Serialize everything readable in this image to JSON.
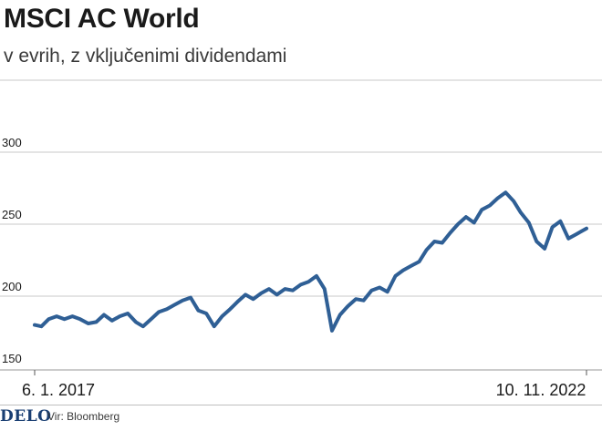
{
  "title": "MSCI AC World",
  "subtitle": "v evrih, z vključenimi dividendami",
  "brand": "DELO",
  "source": "Vir: Bloomberg",
  "colors": {
    "line": "#2f5f95",
    "grid": "#c8c8c8",
    "brand": "#1a3f73"
  },
  "chart_data": {
    "type": "line",
    "title": "MSCI AC World",
    "subtitle": "v evrih, z vključenimi dividendami",
    "x_start_label": "6. 1. 2017",
    "x_end_label": "10. 11. 2022",
    "x_tick_labels": [
      "6. 1. 2017",
      "10. 11. 2022"
    ],
    "y_ticks": [
      150,
      200,
      250,
      300
    ],
    "ylim": [
      140,
      350
    ],
    "grid": "horizontal",
    "series": [
      {
        "name": "",
        "values": [
          [
            "2017-01-06",
            180
          ],
          [
            "2017-02-01",
            179
          ],
          [
            "2017-03-01",
            184
          ],
          [
            "2017-04-01",
            186
          ],
          [
            "2017-05-01",
            184
          ],
          [
            "2017-06-01",
            186
          ],
          [
            "2017-07-01",
            184
          ],
          [
            "2017-08-01",
            181
          ],
          [
            "2017-09-01",
            182
          ],
          [
            "2017-10-01",
            187
          ],
          [
            "2017-11-01",
            183
          ],
          [
            "2017-12-01",
            186
          ],
          [
            "2018-01-01",
            188
          ],
          [
            "2018-02-01",
            182
          ],
          [
            "2018-03-01",
            179
          ],
          [
            "2018-04-01",
            184
          ],
          [
            "2018-05-01",
            189
          ],
          [
            "2018-06-01",
            191
          ],
          [
            "2018-07-01",
            194
          ],
          [
            "2018-08-01",
            197
          ],
          [
            "2018-09-01",
            199
          ],
          [
            "2018-10-01",
            190
          ],
          [
            "2018-11-01",
            188
          ],
          [
            "2018-12-01",
            179
          ],
          [
            "2019-01-01",
            186
          ],
          [
            "2019-02-01",
            191
          ],
          [
            "2019-03-01",
            196
          ],
          [
            "2019-04-01",
            201
          ],
          [
            "2019-05-01",
            198
          ],
          [
            "2019-06-01",
            202
          ],
          [
            "2019-07-01",
            205
          ],
          [
            "2019-08-01",
            201
          ],
          [
            "2019-09-01",
            205
          ],
          [
            "2019-10-01",
            204
          ],
          [
            "2019-11-01",
            208
          ],
          [
            "2019-12-01",
            210
          ],
          [
            "2020-01-01",
            214
          ],
          [
            "2020-02-01",
            205
          ],
          [
            "2020-03-01",
            176
          ],
          [
            "2020-04-01",
            187
          ],
          [
            "2020-05-01",
            193
          ],
          [
            "2020-06-01",
            198
          ],
          [
            "2020-07-01",
            197
          ],
          [
            "2020-08-01",
            204
          ],
          [
            "2020-09-01",
            206
          ],
          [
            "2020-10-01",
            203
          ],
          [
            "2020-11-01",
            214
          ],
          [
            "2020-12-01",
            218
          ],
          [
            "2021-01-01",
            221
          ],
          [
            "2021-02-01",
            224
          ],
          [
            "2021-03-01",
            232
          ],
          [
            "2021-04-01",
            238
          ],
          [
            "2021-05-01",
            237
          ],
          [
            "2021-06-01",
            244
          ],
          [
            "2021-07-01",
            250
          ],
          [
            "2021-08-01",
            255
          ],
          [
            "2021-09-01",
            251
          ],
          [
            "2021-10-01",
            260
          ],
          [
            "2021-11-01",
            263
          ],
          [
            "2021-12-01",
            268
          ],
          [
            "2022-01-01",
            272
          ],
          [
            "2022-02-01",
            266
          ],
          [
            "2022-03-01",
            258
          ],
          [
            "2022-04-01",
            251
          ],
          [
            "2022-05-01",
            238
          ],
          [
            "2022-06-01",
            233
          ],
          [
            "2022-07-01",
            248
          ],
          [
            "2022-08-01",
            252
          ],
          [
            "2022-09-01",
            240
          ],
          [
            "2022-10-01",
            243
          ],
          [
            "2022-11-10",
            247
          ]
        ]
      }
    ]
  }
}
